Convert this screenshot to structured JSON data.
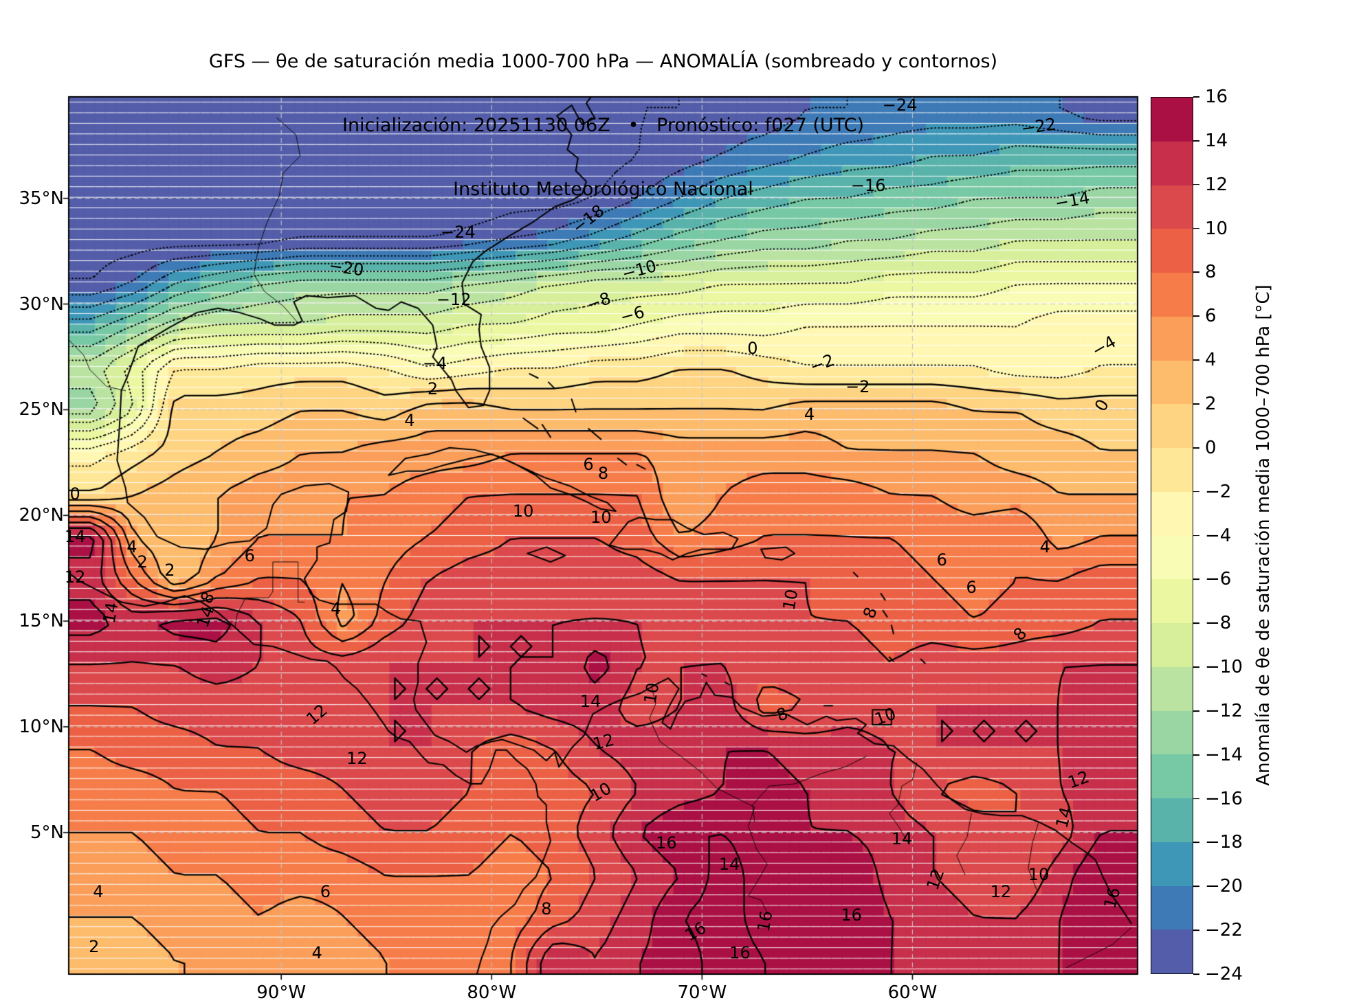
{
  "title": {
    "line1": "GFS — θe de saturación media 1000-700 hPa — ANOMALÍA (sombreado y contornos)",
    "line2": "Inicialización: 20251130 06Z   •   Pronóstico: f027 (UTC)",
    "line3": "Instituto Meteorológico Nacional"
  },
  "axes": {
    "x_ticks": [
      {
        "label": "90°W",
        "lon": -90
      },
      {
        "label": "80°W",
        "lon": -80
      },
      {
        "label": "70°W",
        "lon": -70
      },
      {
        "label": "60°W",
        "lon": -60
      }
    ],
    "y_ticks": [
      {
        "label": "35°N",
        "lat": 35
      },
      {
        "label": "30°N",
        "lat": 30
      },
      {
        "label": "25°N",
        "lat": 25
      },
      {
        "label": "20°N",
        "lat": 20
      },
      {
        "label": "15°N",
        "lat": 15
      },
      {
        "label": "10°N",
        "lat": 10
      },
      {
        "label": "5°N",
        "lat": 5
      }
    ]
  },
  "colorbar": {
    "label": "Anomalía de θe de saturación media 1000–700 hPa [°C]",
    "min": -24,
    "max": 16,
    "tick_values": [
      16,
      14,
      12,
      10,
      8,
      6,
      4,
      2,
      0,
      -2,
      -4,
      -6,
      -8,
      -10,
      -12,
      -14,
      -16,
      -18,
      -20,
      -22,
      -24
    ],
    "band_colors_top_to_bottom": [
      "#ab1045",
      "#c72f4b",
      "#dc494c",
      "#ec6145",
      "#f67d4a",
      "#fa9e5a",
      "#fdbb6c",
      "#fed381",
      "#fee898",
      "#fff7b2",
      "#f9fcb5",
      "#ecf7a1",
      "#d7ef9b",
      "#bae3a1",
      "#9ad6a4",
      "#77c8a5",
      "#59b3ab",
      "#3f97b7",
      "#3d7ab6",
      "#535da9"
    ]
  },
  "chart_data": {
    "type": "heatmap",
    "title": "GFS — θe de saturación media 1000-700 hPa — ANOMALÍA (sombreado y contornos)",
    "subtitle": "Inicialización: 20251130 06Z • Pronóstico: f027 (UTC) — Instituto Meteorológico Nacional",
    "units": "°C",
    "colormap": "Spectral_r",
    "contour_interval": 2,
    "negative_contour_style": "dotted",
    "positive_contour_style": "solid",
    "plot_extent": {
      "lon": [
        -100.1,
        -49.3
      ],
      "lat": [
        -1.7,
        39.8
      ]
    },
    "grid": {
      "lon_start": -99,
      "lon_step": 2,
      "lat_start": 39,
      "lat_step": -2,
      "ncols": 25,
      "nrows": 21,
      "values": [
        [
          -26,
          -26,
          -26,
          -26,
          -26,
          -26,
          -26,
          -26,
          -25,
          -25,
          -25,
          -25,
          -25,
          -24,
          -24,
          -23,
          -23,
          -22,
          -22,
          -21,
          -21,
          -21,
          -21,
          -22,
          -23
        ],
        [
          -26,
          -26,
          -26,
          -26,
          -26,
          -26,
          -25,
          -25,
          -25,
          -25,
          -25,
          -25,
          -25,
          -24,
          -23,
          -22,
          -21,
          -20,
          -19,
          -19,
          -18,
          -18,
          -17,
          -17,
          -17
        ],
        [
          -26,
          -26,
          -26,
          -26,
          -26,
          -26,
          -26,
          -26,
          -26,
          -26,
          -25,
          -25,
          -24,
          -22,
          -20,
          -18,
          -17,
          -16,
          -16,
          -15,
          -15,
          -14,
          -14,
          -14,
          -13
        ],
        [
          -25,
          -25,
          -25,
          -25,
          -25,
          -24,
          -24,
          -24,
          -24,
          -23,
          -22,
          -21,
          -19,
          -17,
          -15,
          -14,
          -13,
          -13,
          -12,
          -12,
          -11,
          -11,
          -10,
          -10,
          -10
        ],
        [
          -24,
          -22,
          -18,
          -16,
          -14,
          -13,
          -13,
          -13,
          -13,
          -12,
          -11,
          -10,
          -9,
          -9,
          -9,
          -8,
          -8,
          -8,
          -8,
          -7,
          -7,
          -7,
          -6,
          -6,
          -6
        ],
        [
          -17,
          -14,
          -11,
          -10,
          -10,
          -10,
          -9,
          -9,
          -9,
          -8,
          -8,
          -7,
          -7,
          -6,
          -5,
          -5,
          -5,
          -4,
          -4,
          -4,
          -4,
          -4,
          -4,
          -3,
          -3
        ],
        [
          -11,
          -7,
          -2,
          -2,
          -1,
          -1,
          -1,
          -2,
          -4,
          -3,
          -2,
          -2,
          -1,
          -1,
          0,
          0,
          -1,
          -2,
          -2,
          -2,
          -2,
          -2,
          -3,
          -3,
          -2
        ],
        [
          -13,
          -8,
          1,
          1,
          1,
          2,
          2,
          1,
          3,
          3,
          2,
          2,
          2,
          2,
          2,
          2,
          2,
          3,
          3,
          3,
          3,
          2,
          2,
          1,
          1
        ],
        [
          -3,
          -1,
          1,
          2,
          3,
          4,
          4,
          5,
          5,
          5,
          6,
          6,
          6,
          6,
          5,
          5,
          5,
          5,
          4,
          4,
          4,
          4,
          3,
          3,
          2
        ],
        [
          0,
          2,
          3,
          4,
          5,
          5,
          6,
          6,
          7,
          8,
          8,
          8,
          8,
          8,
          4,
          6,
          7,
          7,
          7,
          6,
          6,
          5,
          5,
          4,
          4
        ],
        [
          15,
          4,
          2,
          4,
          6,
          6,
          6,
          7,
          8,
          9,
          10,
          10,
          10,
          9,
          6,
          7,
          8,
          8,
          8,
          8,
          7,
          7,
          8,
          5,
          6
        ],
        [
          13,
          8,
          2,
          6,
          8,
          8,
          6,
          8,
          10,
          11,
          11,
          11,
          11,
          11,
          10,
          10,
          10,
          10,
          9,
          9,
          8,
          7,
          8,
          8,
          9
        ],
        [
          15,
          13,
          15,
          15,
          12,
          10,
          5,
          9,
          11,
          12,
          12,
          12,
          12,
          12,
          11,
          11,
          11,
          10,
          10,
          9,
          9,
          8,
          9,
          9,
          10
        ],
        [
          12,
          12,
          12,
          13,
          12,
          11,
          11,
          12,
          12,
          12,
          12,
          12,
          15,
          12,
          12,
          12,
          11,
          11,
          11,
          10,
          11,
          11,
          11,
          12,
          12
        ],
        [
          10,
          10,
          11,
          11,
          11,
          11,
          12,
          12,
          12,
          12,
          12,
          13,
          13,
          11,
          12,
          13,
          9,
          10,
          11,
          11,
          12,
          12,
          12,
          12,
          13
        ],
        [
          8,
          9,
          9,
          10,
          10,
          11,
          11,
          12,
          12,
          10,
          9,
          10,
          12,
          13,
          13,
          14,
          14,
          13,
          13,
          12,
          12,
          12,
          12,
          12,
          13
        ],
        [
          7,
          7,
          8,
          8,
          9,
          9,
          10,
          11,
          11,
          10,
          9,
          9,
          10,
          12,
          13,
          14,
          15,
          14,
          13,
          12,
          10,
          9,
          10,
          12,
          13
        ],
        [
          6,
          6,
          7,
          7,
          8,
          8,
          9,
          10,
          10,
          9,
          8,
          9,
          11,
          14,
          16,
          16,
          15,
          14,
          14,
          13,
          12,
          11,
          10,
          11,
          14
        ],
        [
          5,
          5,
          6,
          6,
          7,
          7,
          7,
          8,
          8,
          8,
          7,
          8,
          10,
          12,
          14,
          17,
          15,
          15,
          16,
          13,
          12,
          11,
          10,
          13,
          16
        ],
        [
          4,
          4,
          5,
          5,
          6,
          5,
          6,
          7,
          7,
          7,
          7,
          9,
          11,
          13,
          16,
          17,
          15,
          15,
          16,
          14,
          13,
          12,
          12,
          14,
          16
        ],
        [
          3,
          3,
          4,
          4,
          5,
          4,
          5,
          6,
          7,
          7,
          8,
          14,
          12,
          14,
          15,
          17,
          16,
          15,
          15,
          14,
          13,
          13,
          13,
          14,
          16
        ]
      ]
    },
    "contour_labels": [
      [
        -24,
        -81.6,
        33.4,
        0
      ],
      [
        -24,
        -60.6,
        39.4,
        0
      ],
      [
        -22,
        -54.0,
        38.4,
        -8
      ],
      [
        -20,
        -86.9,
        31.7,
        8
      ],
      [
        -18,
        -75.4,
        34.0,
        -38
      ],
      [
        -16,
        -62.1,
        35.6,
        0
      ],
      [
        -14,
        -52.4,
        34.9,
        -10
      ],
      [
        -12,
        -81.8,
        30.2,
        0
      ],
      [
        -10,
        -73.0,
        31.6,
        -15
      ],
      [
        -8,
        -74.9,
        30.1,
        -20
      ],
      [
        -6,
        -73.3,
        29.5,
        -15
      ],
      [
        -4,
        -82.7,
        27.2,
        0
      ],
      [
        -4,
        -50.9,
        28.0,
        -30
      ],
      [
        -2,
        -64.3,
        27.2,
        -20
      ],
      [
        -2,
        -62.6,
        26.1,
        0
      ],
      [
        0,
        -67.6,
        27.9,
        0
      ],
      [
        0,
        -99.8,
        21.0,
        0
      ],
      [
        0,
        -51.0,
        25.2,
        -60
      ],
      [
        2,
        -82.8,
        26.0,
        0
      ],
      [
        2,
        -96.6,
        17.8,
        0
      ],
      [
        2,
        -95.3,
        17.4,
        0
      ],
      [
        2,
        -98.9,
        -0.4,
        0
      ],
      [
        4,
        -83.9,
        24.5,
        0
      ],
      [
        4,
        -64.9,
        24.8,
        0
      ],
      [
        4,
        -97.1,
        18.5,
        0
      ],
      [
        4,
        -87.4,
        15.6,
        0
      ],
      [
        4,
        -53.7,
        18.5,
        0
      ],
      [
        4,
        -88.3,
        -0.7,
        0
      ],
      [
        4,
        -98.7,
        2.2,
        0
      ],
      [
        6,
        -75.4,
        22.4,
        0
      ],
      [
        6,
        -91.5,
        18.1,
        0
      ],
      [
        6,
        -87.9,
        2.2,
        0
      ],
      [
        6,
        -58.6,
        17.9,
        0
      ],
      [
        6,
        -57.2,
        16.6,
        0
      ],
      [
        8,
        -74.7,
        22.0,
        0
      ],
      [
        8,
        -93.5,
        16.1,
        -60
      ],
      [
        8,
        -62.0,
        15.4,
        -70
      ],
      [
        8,
        -54.9,
        14.4,
        -45
      ],
      [
        8,
        -77.4,
        1.4,
        0
      ],
      [
        8,
        -66.2,
        10.6,
        -20
      ],
      [
        10,
        -78.5,
        20.2,
        0
      ],
      [
        10,
        -74.8,
        19.9,
        0
      ],
      [
        10,
        -65.8,
        16.0,
        -80
      ],
      [
        10,
        -72.4,
        11.6,
        -80
      ],
      [
        10,
        -74.8,
        6.9,
        -30
      ],
      [
        10,
        -54.0,
        3.0,
        0
      ],
      [
        10,
        -61.3,
        10.5,
        -20
      ],
      [
        12,
        -88.3,
        10.6,
        -40
      ],
      [
        12,
        -86.4,
        8.5,
        0
      ],
      [
        12,
        -74.7,
        9.3,
        -15
      ],
      [
        12,
        -52.1,
        7.5,
        -20
      ],
      [
        12,
        -58.9,
        2.8,
        -70
      ],
      [
        12,
        -55.8,
        2.2,
        0
      ],
      [
        12,
        -99.8,
        17.1,
        0
      ],
      [
        14,
        -75.3,
        11.2,
        0
      ],
      [
        14,
        -98.1,
        15.4,
        -80
      ],
      [
        14,
        -93.6,
        15.2,
        -70
      ],
      [
        14,
        -68.7,
        3.5,
        0
      ],
      [
        14,
        -60.5,
        4.7,
        0
      ],
      [
        14,
        -52.8,
        5.7,
        -75
      ],
      [
        14,
        -99.8,
        19.0,
        0
      ],
      [
        16,
        -71.7,
        4.5,
        0
      ],
      [
        16,
        -62.9,
        1.1,
        0
      ],
      [
        16,
        -67.0,
        0.8,
        -80
      ],
      [
        16,
        -70.3,
        0.3,
        -30
      ],
      [
        16,
        -68.2,
        -0.7,
        0
      ],
      [
        16,
        -50.5,
        1.9,
        -75
      ]
    ]
  }
}
